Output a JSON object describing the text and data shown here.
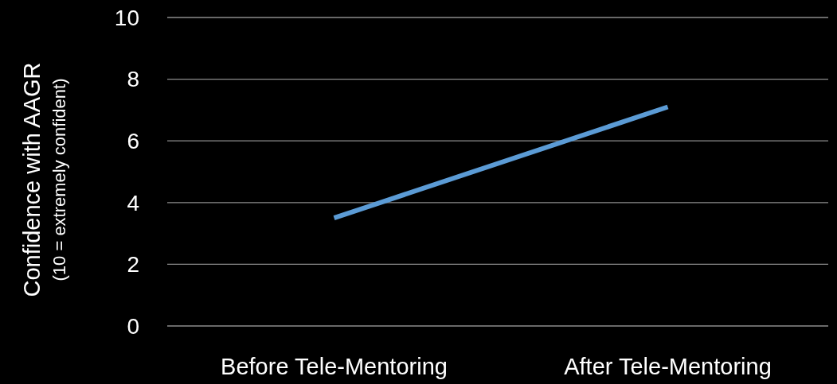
{
  "chart_data": {
    "type": "line",
    "ylabel": "Confidence with AAGR\n(10 = extremely confident)",
    "categories": [
      "Before Tele-Mentoring",
      "After Tele-Mentoring"
    ],
    "series": [
      {
        "color": "#5b9bd5",
        "values": [
          3.5,
          7.1
        ]
      }
    ],
    "ylim": [
      0,
      10
    ],
    "yticks": [
      0,
      2,
      4,
      6,
      8,
      10
    ],
    "grid": "y",
    "marker": "none",
    "line_style": "solid"
  }
}
